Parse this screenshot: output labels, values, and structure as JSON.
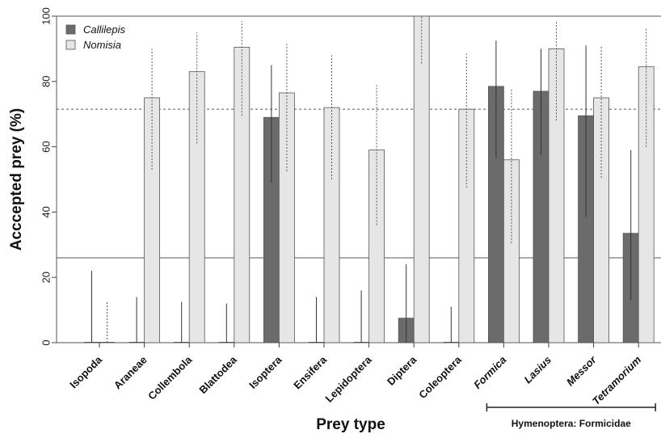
{
  "chart_data": {
    "type": "bar",
    "xlabel": "Prey type",
    "ylabel": "Acccepted prey (%)",
    "ylim": [
      0,
      100
    ],
    "yticks": [
      "0",
      "20",
      "40",
      "60",
      "80",
      "100"
    ],
    "categories": [
      "Isopoda",
      "Araneae",
      "Collembola",
      "Blattodea",
      "Isoptera",
      "Ensifera",
      "Lepidoptera",
      "Diptera",
      "Coleoptera",
      "Formica",
      "Lasius",
      "Messor",
      "Tetramorium"
    ],
    "italic_categories": [
      "Formica",
      "Lasius",
      "Messor",
      "Tetramorium"
    ],
    "series": [
      {
        "name": "Callilepis",
        "color": "#6b6b6b",
        "values": [
          0,
          0,
          0,
          0,
          69,
          0,
          0,
          7.5,
          0,
          78.5,
          77,
          69.5,
          33.5
        ],
        "ci_low": [
          0,
          0,
          0,
          0,
          49,
          0,
          0,
          0,
          0,
          56.5,
          57.5,
          38.5,
          13
        ],
        "ci_high": [
          22,
          14,
          12.5,
          12,
          85,
          14,
          16,
          24,
          11,
          92.5,
          90,
          91,
          59
        ]
      },
      {
        "name": "Nomisia",
        "color": "#e6e6e6",
        "values": [
          0,
          75,
          83,
          90.5,
          76.5,
          72,
          59,
          100,
          71.5,
          56,
          90,
          75,
          84.5
        ],
        "ci_low": [
          0,
          53,
          61,
          69.5,
          52.5,
          50,
          36,
          85.5,
          47.5,
          30.5,
          68,
          50.5,
          60
        ],
        "ci_high": [
          12.5,
          90,
          95,
          98.5,
          91.5,
          88,
          79,
          100,
          88.5,
          78,
          98.5,
          91,
          96.5
        ]
      }
    ],
    "reference_lines": [
      {
        "series": "Callilepis",
        "value": 26,
        "style": "solid"
      },
      {
        "series": "Nomisia",
        "value": 71.5,
        "style": "dashed"
      }
    ],
    "legend": {
      "position": "top-left",
      "entries": [
        "Callilepis",
        "Nomisia"
      ]
    },
    "group_bracket": {
      "label": "Hymenoptera: Formicidae",
      "from": "Formica",
      "to": "Tetramorium"
    },
    "grid": false
  }
}
